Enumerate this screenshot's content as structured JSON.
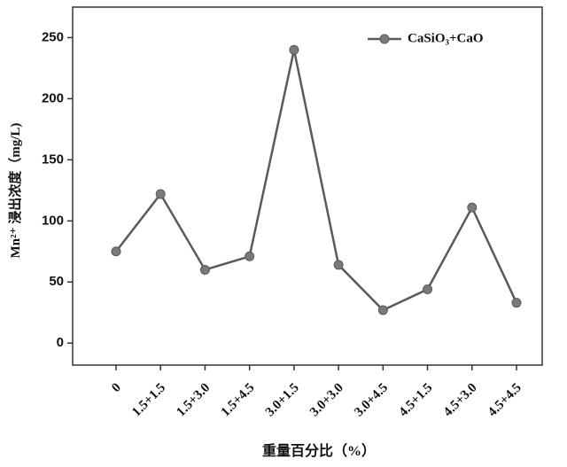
{
  "chart_data": {
    "type": "line",
    "categories": [
      "0",
      "1.5+1.5",
      "1.5+3.0",
      "1.5+4.5",
      "3.0+1.5",
      "3.0+3.0",
      "3.0+4.5",
      "4.5+1.5",
      "4.5+3.0",
      "4.5+4.5"
    ],
    "series": [
      {
        "name": "CaSiO₃+CaO",
        "color": "#5a5a5a",
        "marker_color": "#7a7a7a",
        "values": [
          75,
          122,
          60,
          71,
          240,
          64,
          27,
          44,
          111,
          33
        ]
      }
    ],
    "ylim": [
      -18,
      275
    ],
    "yticks": [
      0,
      50,
      100,
      150,
      200,
      250
    ],
    "ylabel": "Mn²⁺ 浸出浓度（mg/L)",
    "xlabel": "重量百分比（%）",
    "legend": "upper right"
  }
}
